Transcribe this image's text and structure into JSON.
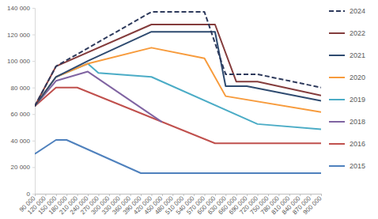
{
  "chart_data": {
    "type": "line",
    "xlim": [
      90000,
      900000
    ],
    "ylim": [
      0,
      140000
    ],
    "xticks": [
      {
        "value": 90000,
        "label": "90 000"
      },
      {
        "value": 120000,
        "label": "120 000"
      },
      {
        "value": 150000,
        "label": "150 000"
      },
      {
        "value": 180000,
        "label": "180 000"
      },
      {
        "value": 210000,
        "label": "210 000"
      },
      {
        "value": 240000,
        "label": "240 000"
      },
      {
        "value": 270000,
        "label": "270 000"
      },
      {
        "value": 300000,
        "label": "300 000"
      },
      {
        "value": 330000,
        "label": "330 000"
      },
      {
        "value": 360000,
        "label": "360 000"
      },
      {
        "value": 390000,
        "label": "390 000"
      },
      {
        "value": 420000,
        "label": "420 000"
      },
      {
        "value": 450000,
        "label": "450 000"
      },
      {
        "value": 480000,
        "label": "480 000"
      },
      {
        "value": 510000,
        "label": "510 000"
      },
      {
        "value": 540000,
        "label": "540 000"
      },
      {
        "value": 570000,
        "label": "570 000"
      },
      {
        "value": 600000,
        "label": "600 000"
      },
      {
        "value": 630000,
        "label": "630 000"
      },
      {
        "value": 660000,
        "label": "660 000"
      },
      {
        "value": 690000,
        "label": "690 000"
      },
      {
        "value": 720000,
        "label": "720 000"
      },
      {
        "value": 750000,
        "label": "750 000"
      },
      {
        "value": 780000,
        "label": "780 000"
      },
      {
        "value": 810000,
        "label": "810 000"
      },
      {
        "value": 840000,
        "label": "840 000"
      },
      {
        "value": 870000,
        "label": "870 000"
      },
      {
        "value": 900000,
        "label": "900 000"
      }
    ],
    "yticks": [
      0,
      {
        "value": 20000,
        "label": "20 000"
      },
      {
        "value": 40000,
        "label": "40 000"
      },
      {
        "value": 60000,
        "label": "60 000"
      },
      {
        "value": 80000,
        "label": "80 000"
      },
      {
        "value": 100000,
        "label": "100 000"
      },
      {
        "value": 120000,
        "label": "120 000"
      },
      {
        "value": 140000,
        "label": "140 000"
      }
    ],
    "grid": false,
    "legend": "right",
    "series": [
      {
        "name": "2024",
        "color": "#2e3a5c",
        "line_style": "dashed",
        "x": [
          90000,
          150000,
          420000,
          570000,
          630000,
          720000,
          900000
        ],
        "values": [
          66000,
          96000,
          137000,
          137000,
          90000,
          90000,
          80000
        ]
      },
      {
        "name": "2022",
        "color": "#843c3c",
        "x": [
          90000,
          150000,
          420000,
          600000,
          660000,
          720000,
          900000
        ],
        "values": [
          66000,
          96000,
          127500,
          127500,
          84500,
          84500,
          74000
        ]
      },
      {
        "name": "2021",
        "color": "#2f4b70",
        "x": [
          90000,
          150000,
          240000,
          420000,
          600000,
          630000,
          690000,
          900000
        ],
        "values": [
          66000,
          88000,
          100000,
          122000,
          122000,
          81000,
          81000,
          70000
        ]
      },
      {
        "name": "2020",
        "color": "#f79b3c",
        "x": [
          90000,
          150000,
          240000,
          420000,
          570000,
          630000,
          900000
        ],
        "values": [
          66000,
          88000,
          98000,
          110000,
          102000,
          73500,
          61500
        ]
      },
      {
        "name": "2019",
        "color": "#4bacc6",
        "x": [
          90000,
          150000,
          240000,
          270000,
          420000,
          720000,
          900000
        ],
        "values": [
          66000,
          88000,
          98000,
          91000,
          88000,
          52500,
          48500
        ]
      },
      {
        "name": "2018",
        "color": "#8064a2",
        "x": [
          90000,
          150000,
          240000,
          450000
        ],
        "values": [
          66000,
          85000,
          92000,
          54000
        ]
      },
      {
        "name": "2016",
        "color": "#c0504d",
        "x": [
          90000,
          150000,
          210000,
          600000,
          900000
        ],
        "values": [
          66000,
          80000,
          80000,
          38000,
          38000
        ]
      },
      {
        "name": "2015",
        "color": "#4f81bd",
        "x": [
          90000,
          150000,
          180000,
          390000,
          900000
        ],
        "values": [
          30000,
          40500,
          40500,
          15500,
          15500
        ]
      }
    ]
  }
}
